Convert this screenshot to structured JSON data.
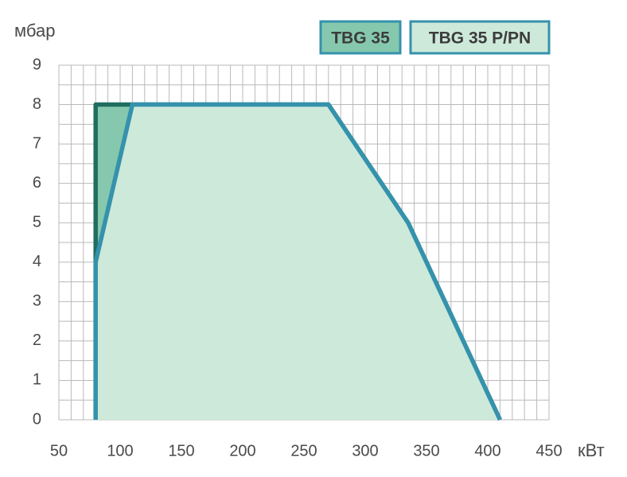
{
  "chart_data": {
    "type": "area",
    "y_label": "мбар",
    "x_label": "кВт",
    "xlim": [
      50,
      450
    ],
    "xticks": [
      50,
      100,
      150,
      200,
      250,
      300,
      350,
      400,
      450
    ],
    "ylim": [
      0,
      9
    ],
    "yticks": [
      0,
      1,
      2,
      3,
      4,
      5,
      6,
      7,
      8,
      9
    ],
    "grid": true,
    "series": [
      {
        "name": "TBG 35",
        "color": "#1f6e60",
        "fill": "#86c8ae",
        "x": [
          80,
          80,
          110,
          270,
          335,
          410
        ],
        "y": [
          0,
          8,
          8,
          8,
          5,
          0
        ]
      },
      {
        "name": "TBG 35 P/PN",
        "color": "#3592ac",
        "fill": "#cde9da",
        "x": [
          80,
          80,
          110,
          270,
          335,
          410
        ],
        "y": [
          0,
          4,
          8,
          8,
          5,
          0
        ]
      }
    ]
  }
}
